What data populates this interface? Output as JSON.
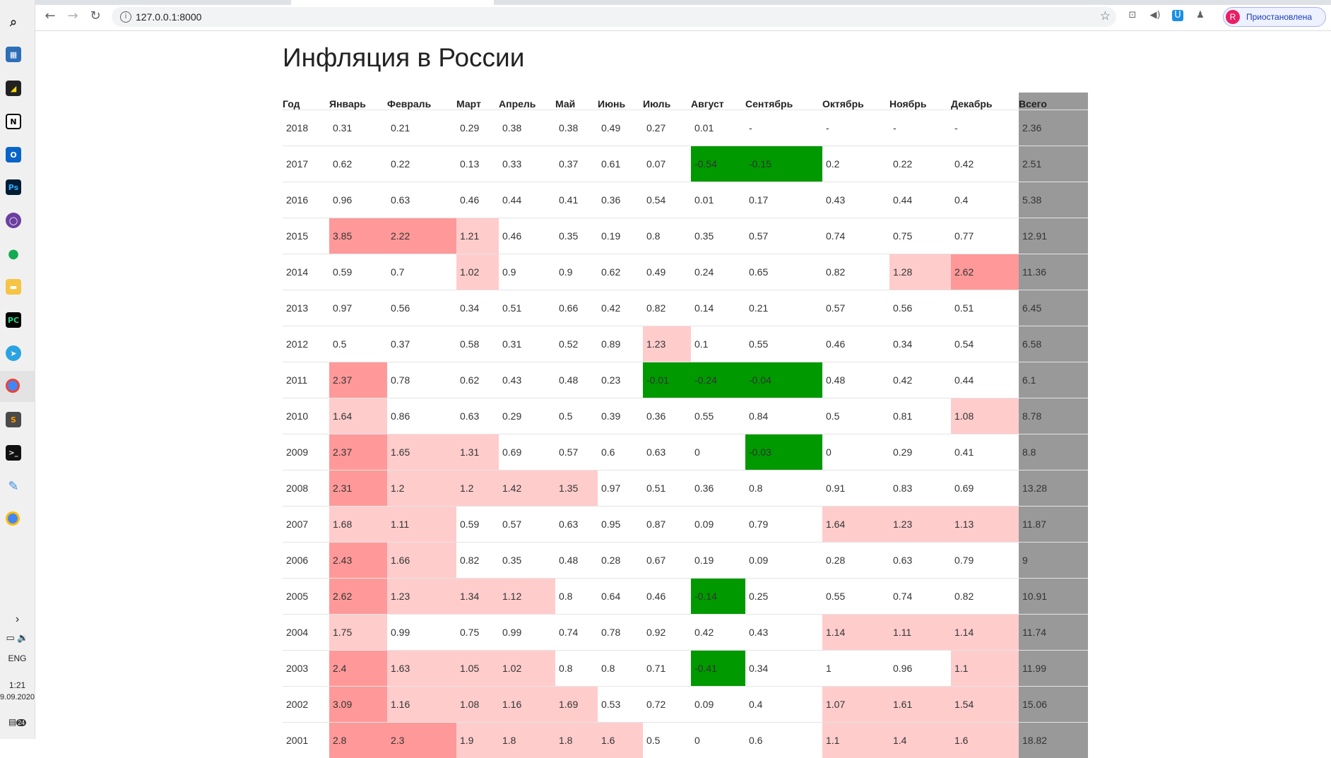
{
  "taskbar": {
    "icons": [
      "search-icon",
      "calculator-icon",
      "sticky-notes-icon",
      "notion-icon",
      "outlook-icon",
      "photoshop-icon",
      "app-icon",
      "mongodb-icon",
      "file-explorer-icon",
      "pycharm-icon",
      "telegram-icon",
      "chrome-icon",
      "sublime-icon",
      "terminal-icon",
      "paint-icon",
      "chrome-icon"
    ],
    "lang": "ENG",
    "time": "1:21",
    "date": "9.09.2020",
    "notifications": "24"
  },
  "browser": {
    "url": "127.0.0.1:8000",
    "profile_initial": "R",
    "profile_label": "Приостановлена"
  },
  "page": {
    "title": "Инфляция в России",
    "headers": [
      "Год",
      "Январь",
      "Февраль",
      "Март",
      "Апрель",
      "Май",
      "Июнь",
      "Июль",
      "Август",
      "Сентябрь",
      "Октябрь",
      "Ноябрь",
      "Декабрь",
      "Всего"
    ],
    "rows": [
      [
        "2018",
        "0.31",
        "0.21",
        "0.29",
        "0.38",
        "0.38",
        "0.49",
        "0.27",
        "0.01",
        "-",
        "-",
        "-",
        "-",
        "2.36"
      ],
      [
        "2017",
        "0.62",
        "0.22",
        "0.13",
        "0.33",
        "0.37",
        "0.61",
        "0.07",
        "-0.54",
        "-0.15",
        "0.2",
        "0.22",
        "0.42",
        "2.51"
      ],
      [
        "2016",
        "0.96",
        "0.63",
        "0.46",
        "0.44",
        "0.41",
        "0.36",
        "0.54",
        "0.01",
        "0.17",
        "0.43",
        "0.44",
        "0.4",
        "5.38"
      ],
      [
        "2015",
        "3.85",
        "2.22",
        "1.21",
        "0.46",
        "0.35",
        "0.19",
        "0.8",
        "0.35",
        "0.57",
        "0.74",
        "0.75",
        "0.77",
        "12.91"
      ],
      [
        "2014",
        "0.59",
        "0.7",
        "1.02",
        "0.9",
        "0.9",
        "0.62",
        "0.49",
        "0.24",
        "0.65",
        "0.82",
        "1.28",
        "2.62",
        "11.36"
      ],
      [
        "2013",
        "0.97",
        "0.56",
        "0.34",
        "0.51",
        "0.66",
        "0.42",
        "0.82",
        "0.14",
        "0.21",
        "0.57",
        "0.56",
        "0.51",
        "6.45"
      ],
      [
        "2012",
        "0.5",
        "0.37",
        "0.58",
        "0.31",
        "0.52",
        "0.89",
        "1.23",
        "0.1",
        "0.55",
        "0.46",
        "0.34",
        "0.54",
        "6.58"
      ],
      [
        "2011",
        "2.37",
        "0.78",
        "0.62",
        "0.43",
        "0.48",
        "0.23",
        "-0.01",
        "-0.24",
        "-0.04",
        "0.48",
        "0.42",
        "0.44",
        "6.1"
      ],
      [
        "2010",
        "1.64",
        "0.86",
        "0.63",
        "0.29",
        "0.5",
        "0.39",
        "0.36",
        "0.55",
        "0.84",
        "0.5",
        "0.81",
        "1.08",
        "8.78"
      ],
      [
        "2009",
        "2.37",
        "1.65",
        "1.31",
        "0.69",
        "0.57",
        "0.6",
        "0.63",
        "0",
        "-0.03",
        "0",
        "0.29",
        "0.41",
        "8.8"
      ],
      [
        "2008",
        "2.31",
        "1.2",
        "1.2",
        "1.42",
        "1.35",
        "0.97",
        "0.51",
        "0.36",
        "0.8",
        "0.91",
        "0.83",
        "0.69",
        "13.28"
      ],
      [
        "2007",
        "1.68",
        "1.11",
        "0.59",
        "0.57",
        "0.63",
        "0.95",
        "0.87",
        "0.09",
        "0.79",
        "1.64",
        "1.23",
        "1.13",
        "11.87"
      ],
      [
        "2006",
        "2.43",
        "1.66",
        "0.82",
        "0.35",
        "0.48",
        "0.28",
        "0.67",
        "0.19",
        "0.09",
        "0.28",
        "0.63",
        "0.79",
        "9"
      ],
      [
        "2005",
        "2.62",
        "1.23",
        "1.34",
        "1.12",
        "0.8",
        "0.64",
        "0.46",
        "-0.14",
        "0.25",
        "0.55",
        "0.74",
        "0.82",
        "10.91"
      ],
      [
        "2004",
        "1.75",
        "0.99",
        "0.75",
        "0.99",
        "0.74",
        "0.78",
        "0.92",
        "0.42",
        "0.43",
        "1.14",
        "1.11",
        "1.14",
        "11.74"
      ],
      [
        "2003",
        "2.4",
        "1.63",
        "1.05",
        "1.02",
        "0.8",
        "0.8",
        "0.71",
        "-0.41",
        "0.34",
        "1",
        "0.96",
        "1.1",
        "11.99"
      ],
      [
        "2002",
        "3.09",
        "1.16",
        "1.08",
        "1.16",
        "1.69",
        "0.53",
        "0.72",
        "0.09",
        "0.4",
        "1.07",
        "1.61",
        "1.54",
        "15.06"
      ],
      [
        "2001",
        "2.8",
        "2.3",
        "1.9",
        "1.8",
        "1.8",
        "1.6",
        "0.5",
        "0",
        "0.6",
        "1.1",
        "1.4",
        "1.6",
        "18.82"
      ]
    ],
    "colors": {
      "high": "#ffcccc",
      "very_high": "#ff9999",
      "negative": "#009900",
      "total": "#999999"
    }
  }
}
